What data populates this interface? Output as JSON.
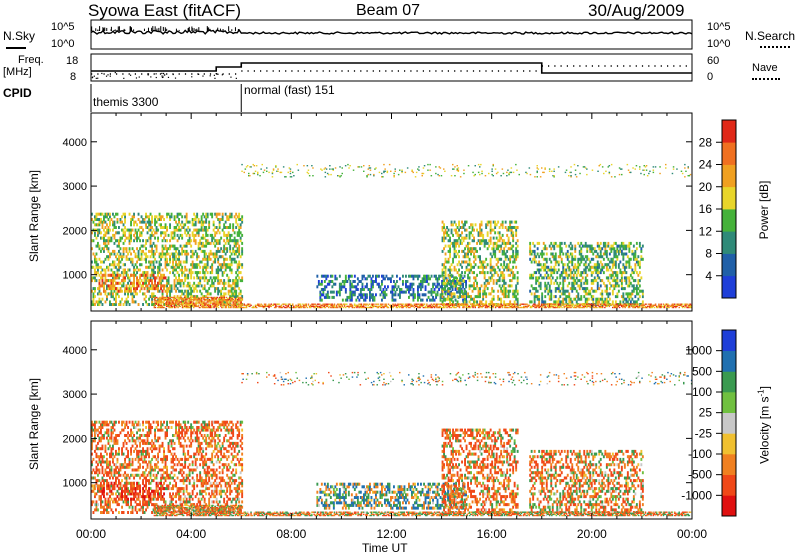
{
  "header": {
    "title": "Syowa East (fitACF)",
    "beam": "Beam 07",
    "date": "30/Aug/2009"
  },
  "top_panel": {
    "nsky_label": "N.Sky",
    "nsearch_label": "N.Search",
    "left_ticks": [
      "10^5",
      "10^0"
    ],
    "right_ticks": [
      "10^5",
      "10^0"
    ]
  },
  "freq_panel": {
    "freq_label": "Freq.",
    "unit_label": "[MHz]",
    "nave_label": "Nave",
    "left_ticks": [
      "18",
      "8"
    ],
    "right_ticks": [
      "60",
      "0"
    ]
  },
  "cpid": {
    "label": "CPID",
    "modes": [
      {
        "name": "themis 3300",
        "start_hour": 0,
        "end_hour": 6
      },
      {
        "name": "normal (fast) 151",
        "start_hour": 6,
        "end_hour": 24
      }
    ]
  },
  "time_axis": {
    "label": "Time UT",
    "ticks": [
      "00:00",
      "04:00",
      "08:00",
      "12:00",
      "16:00",
      "20:00",
      "00:00"
    ],
    "range_hours": [
      0,
      24
    ]
  },
  "range_axis": {
    "label": "Slant Range [km]",
    "ticks": [
      "1000",
      "2000",
      "3000",
      "4000"
    ],
    "range_km": [
      180,
      4650
    ]
  },
  "power_scale": {
    "label": "Power [dB]",
    "ticks": [
      "4",
      "8",
      "12",
      "16",
      "20",
      "24",
      "28"
    ],
    "colors": [
      "#1f3fd8",
      "#2060a8",
      "#2f8a78",
      "#45b23a",
      "#e8d52a",
      "#f0a020",
      "#f07020",
      "#e02818"
    ]
  },
  "velocity_scale": {
    "label": "Velocity [m s",
    "sup": "-1",
    "label_end": "]",
    "ticks": [
      "1000",
      "500",
      "100",
      "25",
      "-25",
      "-100",
      "-500",
      "-1000"
    ],
    "colors": [
      "#1f3fd8",
      "#2070b0",
      "#3a9a50",
      "#70c040",
      "#c8c8c8",
      "#f0c030",
      "#f08020",
      "#f04818",
      "#e01010"
    ]
  },
  "chart_data": {
    "type": "heatmap",
    "panels": [
      {
        "name": "Power",
        "quantity": "Power [dB]",
        "range": [
          0,
          30
        ]
      },
      {
        "name": "Velocity",
        "quantity": "Velocity [m s-1]",
        "range": [
          -1000,
          1000
        ]
      }
    ],
    "x_range_hours": [
      0,
      24
    ],
    "y_range_km": [
      180,
      4650
    ],
    "echo_regions": [
      {
        "t": [
          0.0,
          6.0
        ],
        "r": [
          300,
          2400
        ],
        "power_db": 18,
        "velocity": -300
      },
      {
        "t": [
          0.3,
          3.0
        ],
        "r": [
          600,
          1000
        ],
        "power_db": 26,
        "velocity": -600
      },
      {
        "t": [
          2.5,
          6.0
        ],
        "r": [
          250,
          500
        ],
        "power_db": 26,
        "velocity": -200
      },
      {
        "t": [
          9.0,
          15.0
        ],
        "r": [
          400,
          1000
        ],
        "power_db": 10,
        "velocity": 150
      },
      {
        "t": [
          14.0,
          17.0
        ],
        "r": [
          300,
          2200
        ],
        "power_db": 18,
        "velocity": -300
      },
      {
        "t": [
          17.5,
          22.0
        ],
        "r": [
          300,
          1700
        ],
        "power_db": 16,
        "velocity": -200
      },
      {
        "t": [
          6.0,
          24.0
        ],
        "r": [
          250,
          350
        ],
        "power_db": 26,
        "velocity": -150
      },
      {
        "t": [
          6.0,
          24.0
        ],
        "r": [
          3200,
          3500
        ],
        "power_db": 18,
        "velocity": 0
      }
    ]
  }
}
